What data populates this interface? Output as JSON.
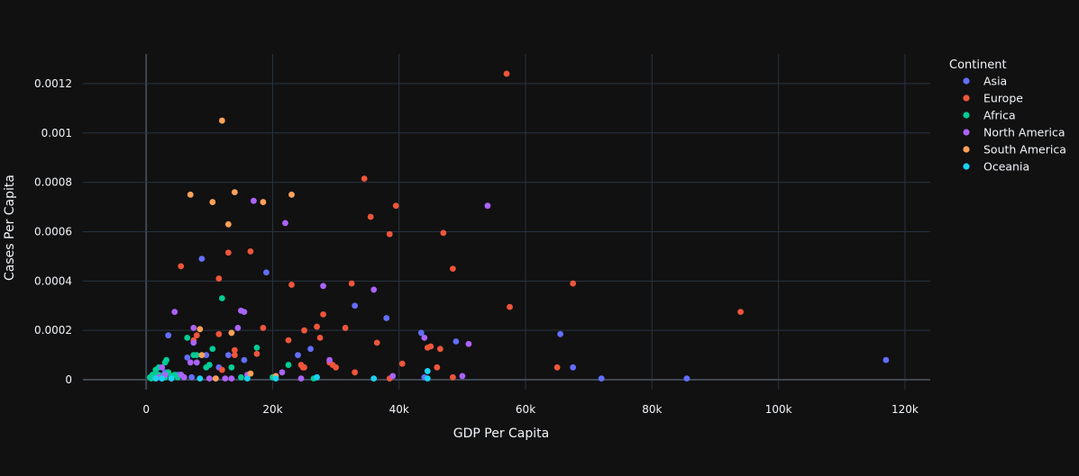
{
  "chart_data": {
    "type": "scatter",
    "title": "",
    "xlabel": "GDP Per Capita",
    "ylabel": "Cases Per Capita",
    "xlim": [
      -10000,
      124000
    ],
    "ylim": [
      -4e-05,
      0.00132
    ],
    "x_ticks": [
      0,
      20000,
      40000,
      60000,
      80000,
      100000,
      120000
    ],
    "x_tick_labels": [
      "0",
      "20k",
      "40k",
      "60k",
      "80k",
      "100k",
      "120k"
    ],
    "y_ticks": [
      0,
      0.0002,
      0.0004,
      0.0006,
      0.0008,
      0.001,
      0.0012
    ],
    "y_tick_labels": [
      "0",
      "0.0002",
      "0.0004",
      "0.0006",
      "0.0008",
      "0.001",
      "0.0012"
    ],
    "grid": true,
    "legend_position": "right",
    "legend_title": "Continent",
    "series": [
      {
        "name": "Asia",
        "color": "#636efa",
        "points": [
          [
            117000,
            8e-05
          ],
          [
            85500,
            5e-06
          ],
          [
            72000,
            5e-06
          ],
          [
            67500,
            5e-05
          ],
          [
            65500,
            0.000185
          ],
          [
            49000,
            0.000155
          ],
          [
            44000,
            1e-05
          ],
          [
            43500,
            0.00019
          ],
          [
            38000,
            0.00025
          ],
          [
            33000,
            0.0003
          ],
          [
            26000,
            0.000125
          ],
          [
            24000,
            0.0001
          ],
          [
            19000,
            0.000435
          ],
          [
            15500,
            8e-05
          ],
          [
            13000,
            0.0001
          ],
          [
            11500,
            5e-05
          ],
          [
            9500,
            0.0001
          ],
          [
            8800,
            0.00049
          ],
          [
            6500,
            9e-05
          ],
          [
            5000,
            2e-05
          ],
          [
            4000,
            1.5e-05
          ],
          [
            3500,
            0.00018
          ],
          [
            3000,
            3e-05
          ],
          [
            2500,
            5e-06
          ],
          [
            2000,
            2e-05
          ],
          [
            1500,
            5e-06
          ],
          [
            1000,
            1e-05
          ],
          [
            7200,
            1e-05
          ]
        ]
      },
      {
        "name": "Europe",
        "color": "#ef553b",
        "points": [
          [
            57000,
            0.00124
          ],
          [
            94000,
            0.000275
          ],
          [
            67500,
            0.00039
          ],
          [
            57500,
            0.000295
          ],
          [
            65000,
            5e-05
          ],
          [
            48500,
            0.00045
          ],
          [
            47000,
            0.000595
          ],
          [
            46500,
            0.000125
          ],
          [
            46000,
            5e-05
          ],
          [
            45000,
            0.000135
          ],
          [
            44500,
            0.00013
          ],
          [
            48500,
            1e-05
          ],
          [
            40500,
            6.5e-05
          ],
          [
            38500,
            5e-06
          ],
          [
            38500,
            0.00059
          ],
          [
            39500,
            0.000705
          ],
          [
            35500,
            0.00066
          ],
          [
            34500,
            0.000815
          ],
          [
            36500,
            0.00015
          ],
          [
            33000,
            3e-05
          ],
          [
            32500,
            0.00039
          ],
          [
            31500,
            0.00021
          ],
          [
            30000,
            5e-05
          ],
          [
            29500,
            6e-05
          ],
          [
            29000,
            7e-05
          ],
          [
            28000,
            0.000265
          ],
          [
            27500,
            0.00017
          ],
          [
            27000,
            0.000215
          ],
          [
            25000,
            5e-05
          ],
          [
            25000,
            0.0002
          ],
          [
            24500,
            6e-05
          ],
          [
            23000,
            0.000385
          ],
          [
            22500,
            0.00016
          ],
          [
            18500,
            0.00021
          ],
          [
            17500,
            0.000105
          ],
          [
            16500,
            0.00052
          ],
          [
            14000,
            0.00012
          ],
          [
            13000,
            0.000515
          ],
          [
            12000,
            4e-05
          ],
          [
            11500,
            0.00041
          ],
          [
            11500,
            0.000185
          ],
          [
            8000,
            0.00018
          ],
          [
            7500,
            0.00016
          ],
          [
            5500,
            0.00046
          ],
          [
            14000,
            0.0001
          ],
          [
            24800,
            5e-05
          ]
        ]
      },
      {
        "name": "Africa",
        "color": "#00cc96",
        "points": [
          [
            12000,
            0.00033
          ],
          [
            17500,
            0.00013
          ],
          [
            13500,
            5e-05
          ],
          [
            10500,
            0.000125
          ],
          [
            10000,
            6e-05
          ],
          [
            9500,
            5e-05
          ],
          [
            8000,
            0.0001
          ],
          [
            7500,
            0.0001
          ],
          [
            6500,
            0.00017
          ],
          [
            5500,
            2e-05
          ],
          [
            5000,
            1e-05
          ],
          [
            4500,
            2e-05
          ],
          [
            4000,
            1.5e-05
          ],
          [
            3500,
            3e-05
          ],
          [
            3000,
            7e-05
          ],
          [
            3200,
            8e-05
          ],
          [
            3000,
            1e-05
          ],
          [
            2500,
            5e-06
          ],
          [
            2000,
            5e-05
          ],
          [
            1800,
            2e-05
          ],
          [
            1500,
            4e-05
          ],
          [
            1200,
            1e-05
          ],
          [
            1000,
            2e-05
          ],
          [
            800,
            5e-06
          ],
          [
            600,
            1e-05
          ],
          [
            20000,
            1e-05
          ],
          [
            22500,
            6e-05
          ],
          [
            26500,
            5e-06
          ],
          [
            15000,
            1e-05
          ],
          [
            2800,
            2e-05
          ]
        ]
      },
      {
        "name": "North America",
        "color": "#ab63fa",
        "points": [
          [
            54000,
            0.000705
          ],
          [
            51000,
            0.000145
          ],
          [
            50000,
            1.5e-05
          ],
          [
            44000,
            0.00017
          ],
          [
            39000,
            1.5e-05
          ],
          [
            36000,
            0.000365
          ],
          [
            29000,
            8e-05
          ],
          [
            28000,
            0.00038
          ],
          [
            24500,
            5e-06
          ],
          [
            22000,
            0.000635
          ],
          [
            21500,
            3e-05
          ],
          [
            17000,
            0.000725
          ],
          [
            16000,
            2e-05
          ],
          [
            15500,
            0.000275
          ],
          [
            15000,
            0.00028
          ],
          [
            14500,
            0.00021
          ],
          [
            12500,
            5e-06
          ],
          [
            11000,
            5e-06
          ],
          [
            10000,
            5e-06
          ],
          [
            8000,
            7e-05
          ],
          [
            7500,
            0.00021
          ],
          [
            7500,
            0.00015
          ],
          [
            7000,
            7e-05
          ],
          [
            6000,
            1e-05
          ],
          [
            5500,
            2e-05
          ],
          [
            4500,
            0.000275
          ],
          [
            3000,
            2e-05
          ],
          [
            2000,
            1e-05
          ],
          [
            2500,
            5e-05
          ],
          [
            13500,
            5e-06
          ]
        ]
      },
      {
        "name": "South America",
        "color": "#ffa15a",
        "points": [
          [
            12000,
            0.00105
          ],
          [
            7000,
            0.00075
          ],
          [
            14000,
            0.00076
          ],
          [
            23000,
            0.00075
          ],
          [
            18500,
            0.00072
          ],
          [
            10500,
            0.00072
          ],
          [
            13000,
            0.00063
          ],
          [
            8500,
            0.000205
          ],
          [
            13500,
            0.00019
          ],
          [
            11000,
            5e-06
          ],
          [
            16500,
            2.5e-05
          ],
          [
            20500,
            1.5e-05
          ],
          [
            8800,
            0.0001
          ]
        ]
      },
      {
        "name": "Oceania",
        "color": "#19d3f3",
        "points": [
          [
            44500,
            3.5e-05
          ],
          [
            44500,
            5e-06
          ],
          [
            36000,
            5e-06
          ],
          [
            27000,
            1e-05
          ],
          [
            20500,
            5e-06
          ],
          [
            16000,
            5e-06
          ],
          [
            8500,
            5e-06
          ],
          [
            4000,
            5e-06
          ],
          [
            2500,
            5e-06
          ],
          [
            1500,
            5e-06
          ]
        ]
      }
    ]
  }
}
